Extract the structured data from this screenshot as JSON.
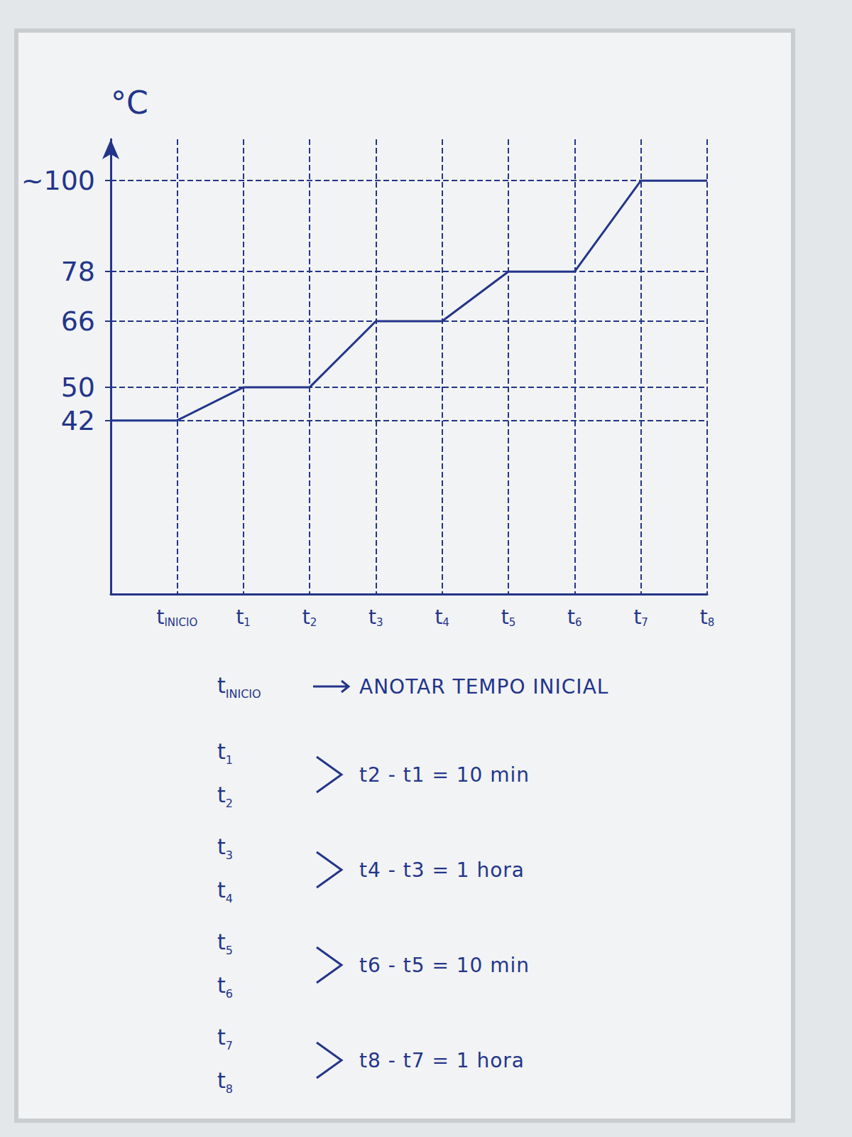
{
  "chart_data": {
    "type": "line",
    "y_label": "°C",
    "categories": [
      null,
      "tINICIO",
      "t1",
      "t2",
      "t3",
      "t4",
      "t5",
      "t6",
      "t7",
      "t8"
    ],
    "values": [
      42,
      42,
      50,
      50,
      66,
      66,
      78,
      78,
      100,
      100
    ],
    "color": "#23358a",
    "ylim": [
      0,
      110
    ],
    "yticks": [
      42,
      50,
      66,
      78,
      {
        "value": 100,
        "label": "~100"
      }
    ],
    "grid": true,
    "notes": [
      {
        "keys": [
          "tINICIO"
        ],
        "text": "ANOTAR TEMPO INICIAL"
      },
      {
        "keys": [
          "t1",
          "t2"
        ],
        "text": "t2 - t1 = 10 min"
      },
      {
        "keys": [
          "t3",
          "t4"
        ],
        "text": "t4 - t3 = 1 hora"
      },
      {
        "keys": [
          "t5",
          "t6"
        ],
        "text": "t6 - t5 = 10 min"
      },
      {
        "keys": [
          "t7",
          "t8"
        ],
        "text": "t8 - t7 = 1 hora"
      }
    ]
  }
}
